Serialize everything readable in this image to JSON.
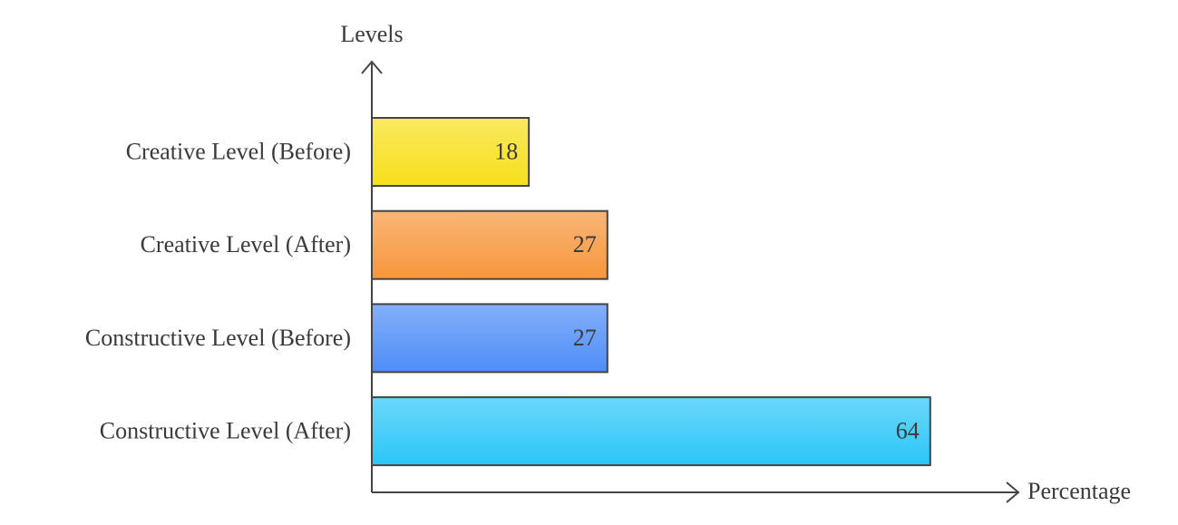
{
  "chart_data": {
    "type": "bar",
    "orientation": "horizontal",
    "x_label": "Percentage",
    "y_label": "Levels",
    "categories": [
      "Creative Level (Before)",
      "Creative Level (After)",
      "Constructive Level (Before)",
      "Constructive Level (After)"
    ],
    "values": [
      18,
      27,
      27,
      64
    ],
    "colors": [
      "#f7df1c",
      "#f7963c",
      "#4f8df7",
      "#2bc6f8"
    ],
    "xlim": [
      0,
      74
    ]
  }
}
